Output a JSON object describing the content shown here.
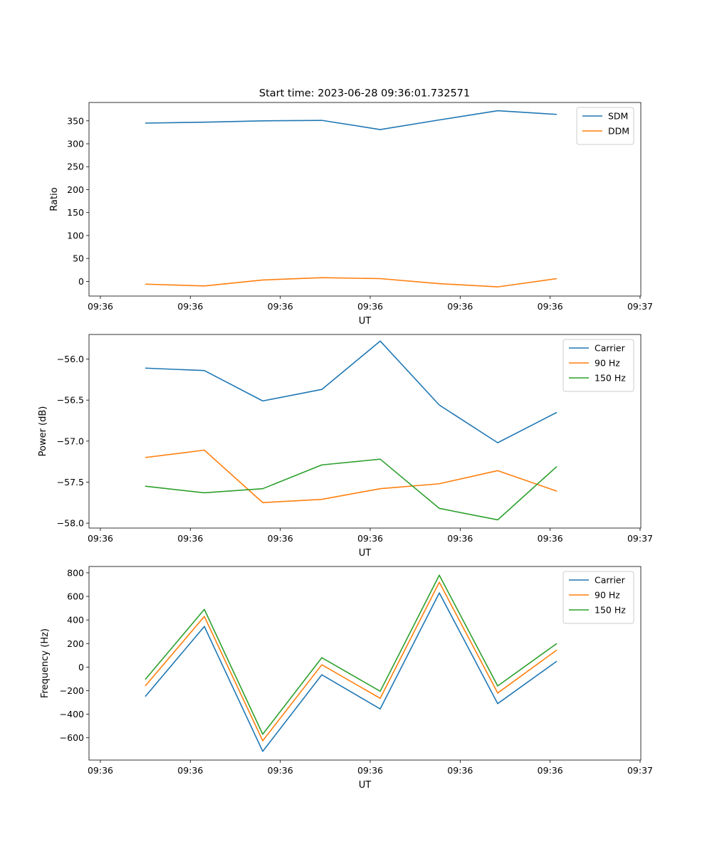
{
  "figure": {
    "title": "Start time: 2023-06-28 09:36:01.732571"
  },
  "colors": {
    "blue": "#1f77b4",
    "orange": "#ff7f0e",
    "green": "#2ca02c"
  },
  "chart_data": [
    {
      "type": "line",
      "title": "Start time: 2023-06-28 09:36:01.732571",
      "xlabel": "UT",
      "ylabel": "Ratio",
      "x_tick_labels": [
        "09:36",
        "09:36",
        "09:36",
        "09:36",
        "09:36",
        "09:36",
        "09:37"
      ],
      "yticks": [
        0,
        50,
        100,
        150,
        200,
        250,
        300,
        350
      ],
      "ylim": [
        -32,
        390
      ],
      "legend_position": "upper right",
      "series": [
        {
          "name": "SDM",
          "color": "#1f77b4",
          "values": [
            345,
            347,
            350,
            351,
            331,
            352,
            372,
            364
          ]
        },
        {
          "name": "DDM",
          "color": "#ff7f0e",
          "values": [
            -6,
            -10,
            3,
            8,
            6,
            -5,
            -12,
            6
          ]
        }
      ]
    },
    {
      "type": "line",
      "title": "",
      "xlabel": "UT",
      "ylabel": "Power (dB)",
      "x_tick_labels": [
        "09:36",
        "09:36",
        "09:36",
        "09:36",
        "09:36",
        "09:36",
        "09:37"
      ],
      "yticks": [
        -58.0,
        -57.5,
        -57.0,
        -56.5,
        -56.0
      ],
      "ytick_labels": [
        "−58.0",
        "−57.5",
        "−57.0",
        "−56.5",
        "−56.0"
      ],
      "ylim": [
        -58.06,
        -55.7
      ],
      "legend_position": "upper right",
      "series": [
        {
          "name": "Carrier",
          "color": "#1f77b4",
          "values": [
            -56.11,
            -56.14,
            -56.51,
            -56.37,
            -55.78,
            -56.56,
            -57.02,
            -56.65
          ]
        },
        {
          "name": "90 Hz",
          "color": "#ff7f0e",
          "values": [
            -57.2,
            -57.11,
            -57.75,
            -57.71,
            -57.58,
            -57.52,
            -57.36,
            -57.61
          ]
        },
        {
          "name": "150 Hz",
          "color": "#2ca02c",
          "values": [
            -57.55,
            -57.63,
            -57.58,
            -57.29,
            -57.22,
            -57.82,
            -57.96,
            -57.31
          ]
        }
      ]
    },
    {
      "type": "line",
      "title": "",
      "xlabel": "UT",
      "ylabel": "Frequency (Hz)",
      "x_tick_labels": [
        "09:36",
        "09:36",
        "09:36",
        "09:36",
        "09:36",
        "09:36",
        "09:37"
      ],
      "yticks": [
        -600,
        -400,
        -200,
        0,
        200,
        400,
        600,
        800
      ],
      "ytick_labels": [
        "−600",
        "−400",
        "−200",
        "0",
        "200",
        "400",
        "600",
        "800"
      ],
      "ylim": [
        -789,
        854
      ],
      "legend_position": "upper right",
      "series": [
        {
          "name": "Carrier",
          "color": "#1f77b4",
          "values": [
            -250,
            345,
            -715,
            -65,
            -355,
            630,
            -310,
            50
          ]
        },
        {
          "name": "90 Hz",
          "color": "#ff7f0e",
          "values": [
            -160,
            430,
            -625,
            20,
            -265,
            720,
            -220,
            145
          ]
        },
        {
          "name": "150 Hz",
          "color": "#2ca02c",
          "values": [
            -105,
            490,
            -570,
            80,
            -205,
            780,
            -160,
            200
          ]
        }
      ]
    }
  ]
}
